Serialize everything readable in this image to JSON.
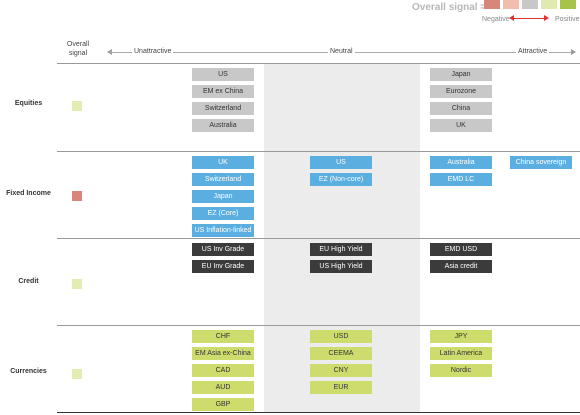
{
  "legend": {
    "title": "Overall signal =",
    "negative": "Negative",
    "positive": "Positive",
    "colors": [
      "#d8867a",
      "#f2bcae",
      "#c8c8c8",
      "#e0eab0",
      "#a6c34a"
    ]
  },
  "header": {
    "overall_signal": "Overall signal",
    "unattractive": "Unattractive",
    "neutral": "Neutral",
    "attractive": "Attractive"
  },
  "rows": [
    {
      "label": "Equities",
      "signal_color": "#e3ecb3",
      "chip_color": "gray",
      "unattractive": [],
      "left": [
        "US",
        "EM ex China",
        "Switzerland",
        "Australia"
      ],
      "neutral": [],
      "right": [
        "Japan",
        "Eurozone",
        "China",
        "UK"
      ],
      "attractive": []
    },
    {
      "label": "Fixed Income",
      "signal_color": "#d8867a",
      "chip_color": "blue",
      "left": [
        "UK",
        "Switzerland",
        "Japan",
        "EZ (Core)",
        "US Inflation-linked"
      ],
      "neutral": [
        "US",
        "EZ (Non-core)"
      ],
      "right": [
        "Australia",
        "EMD LC"
      ],
      "attractive": [
        "China sovereign"
      ]
    },
    {
      "label": "Credit",
      "signal_color": "#e3ecb3",
      "chip_color": "dark",
      "left": [
        "US Inv Grade",
        "EU Inv Grade"
      ],
      "neutral": [
        "EU High Yield",
        "US High Yield"
      ],
      "right": [
        "EMD USD",
        "Asia credit"
      ],
      "attractive": []
    },
    {
      "label": "Currencies",
      "signal_color": "#e3ecb3",
      "chip_color": "green",
      "left": [
        "CHF",
        "EM Asia ex-China",
        "CAD",
        "AUD",
        "GBP"
      ],
      "neutral": [
        "USD",
        "CEEMA",
        "CNY",
        "EUR"
      ],
      "right": [
        "JPY",
        "Latin America",
        "Nordic"
      ],
      "attractive": []
    }
  ]
}
